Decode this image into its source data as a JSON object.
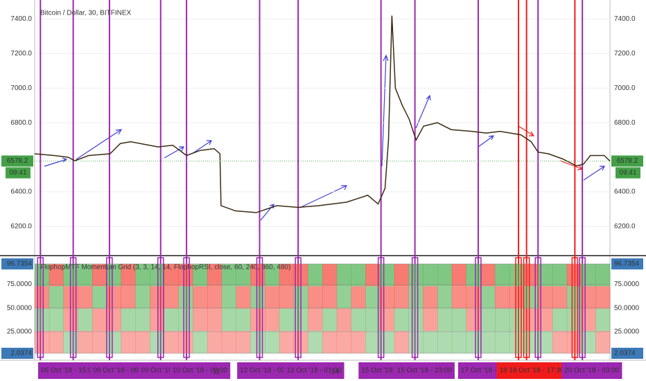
{
  "chart_data": [
    {
      "type": "line",
      "title": "Bitcoin / Dollar, 30, BITFINEX",
      "x": [
        0,
        3.4,
        5.8,
        7,
        9.4,
        13.1,
        14.9,
        16.7,
        21.5,
        24,
        26.4,
        28.8,
        31.2,
        32.2,
        32.4,
        34.9,
        38.5,
        42.1,
        45.8,
        49.4,
        54.2,
        57.9,
        59.7,
        60.9,
        61.5,
        62.1,
        62.7,
        63.9,
        65.1,
        66.3,
        67.6,
        70,
        72.4,
        76,
        78.5,
        80.9,
        84.5,
        86.3,
        87.5,
        89.3,
        91.8,
        94.2,
        95.4,
        96.6,
        99,
        100
      ],
      "values": [
        6620,
        6610,
        6600,
        6580,
        6610,
        6620,
        6680,
        6690,
        6660,
        6670,
        6610,
        6640,
        6650,
        6620,
        6320,
        6290,
        6280,
        6320,
        6310,
        6320,
        6340,
        6380,
        6330,
        6420,
        6700,
        7420,
        7000,
        6900,
        6820,
        6700,
        6780,
        6800,
        6760,
        6750,
        6740,
        6750,
        6730,
        6690,
        6630,
        6620,
        6590,
        6550,
        6560,
        6610,
        6610,
        6578.2
      ],
      "color": "#3b2a12",
      "xlim": [
        0,
        100
      ],
      "ylim": [
        6035,
        7510
      ],
      "yticks": [
        {
          "value": 7400,
          "label": "7400.0"
        },
        {
          "value": 7200,
          "label": "7200.0"
        },
        {
          "value": 7000,
          "label": "7000.0"
        },
        {
          "value": 6800,
          "label": "6800.0"
        },
        {
          "value": 6400,
          "label": "6400.0"
        },
        {
          "value": 6200,
          "label": "6200.0"
        }
      ],
      "last_price": {
        "value": 6578.2,
        "label": "6578.2"
      },
      "countdown": "09:41",
      "signals": [
        {
          "x": 1,
          "color": "#9c27b0"
        },
        {
          "x": 6.7,
          "color": "#9c27b0"
        },
        {
          "x": 13,
          "color": "#9c27b0"
        },
        {
          "x": 21.9,
          "color": "#9c27b0"
        },
        {
          "x": 26.4,
          "color": "#9c27b0"
        },
        {
          "x": 39.1,
          "color": "#9c27b0"
        },
        {
          "x": 45.8,
          "color": "#9c27b0"
        },
        {
          "x": 60.2,
          "color": "#9c27b0"
        },
        {
          "x": 66.1,
          "color": "#9c27b0"
        },
        {
          "x": 77.1,
          "color": "#9c27b0"
        },
        {
          "x": 84.1,
          "color": "#f21b1b"
        },
        {
          "x": 85.5,
          "color": "#f21b1b"
        },
        {
          "x": 87.5,
          "color": "#9c27b0"
        },
        {
          "x": 93.9,
          "color": "#f21b1b"
        },
        {
          "x": 95.2,
          "color": "#9c27b0"
        }
      ],
      "xticks": [
        {
          "value": 0.6,
          "label": "06 Oct '18 - 15:00",
          "color": "#9c27b0"
        },
        {
          "value": 9.7,
          "label": "08 Oct '18 - 08:30",
          "color": "#9c27b0"
        },
        {
          "value": 18,
          "label": "09 Oct '18 -",
          "color": "#9c27b0"
        },
        {
          "value": 23.5,
          "label": "10 Oct '18 - 09:00",
          "color": "#9c27b0"
        },
        {
          "value": 31.6,
          "label": "11"
        },
        {
          "value": 35.2,
          "label": "12 Oct '18 - 02:",
          "color": "#9c27b0"
        },
        {
          "value": 43.3,
          "label": "13 Oct '18 - 01:00",
          "color": "#9c27b0"
        },
        {
          "value": 52.2,
          "label": "14"
        },
        {
          "value": 56.3,
          "label": "15 Oct '18 - 0",
          "color": "#9c27b0"
        },
        {
          "value": 62.5,
          "label": "15 Oct '18 - 23:00",
          "color": "#9c27b0"
        },
        {
          "value": 73.6,
          "label": "17 Oct '18 - 12:",
          "color": "#9c27b0"
        },
        {
          "value": 80.3,
          "label": "18 18 Oct '18 - 17:30 : 19",
          "color": "#f21b1b"
        },
        {
          "value": 91.6,
          "label": "20 Oct '18 - 03:00",
          "color": "#9c27b0"
        }
      ]
    },
    {
      "type": "grid",
      "title": "FlophopMTF Momentum Grid (3, 3, 14, 14, FlophopRSI, close, 60, 240, 360, 480)",
      "ylim": [
        -5.3,
        103.3
      ],
      "yticks": [
        {
          "value": 96.7354,
          "label": "96.7354"
        },
        {
          "value": 75,
          "label": "75.0000"
        },
        {
          "value": 50,
          "label": "50.0000"
        },
        {
          "value": 25,
          "label": "25.0000"
        },
        {
          "value": 2.0374,
          "label": "2.0374"
        }
      ],
      "up_color": "#4caf50",
      "down_color": "#f44336",
      "rows": [
        [
          -1,
          -1,
          1,
          -1,
          -1,
          1,
          -1,
          -1,
          1,
          -1,
          -1,
          1,
          -1,
          -1,
          -1,
          1,
          1,
          -1,
          -1,
          1,
          -1,
          -1,
          -1,
          1,
          1,
          -1,
          1,
          1,
          1,
          1,
          1,
          1,
          1,
          1,
          1,
          1,
          -1,
          -1,
          1,
          -1
        ],
        [
          1,
          1,
          -1,
          1,
          -1,
          -1,
          1,
          1,
          -1,
          1,
          1,
          -1,
          -1,
          1,
          1,
          -1,
          -1,
          1,
          1,
          -1,
          1,
          -1,
          1,
          1,
          -1,
          1,
          1,
          -1,
          1,
          1,
          -1,
          1,
          1,
          1,
          -1,
          -1,
          1,
          1,
          -1,
          1
        ],
        [
          -1,
          1,
          -1,
          -1,
          1,
          -1,
          -1,
          1,
          -1,
          -1,
          1,
          -1,
          -1,
          1,
          -1,
          1,
          -1,
          -1,
          1,
          -1,
          -1,
          1,
          -1,
          1,
          -1,
          -1,
          1,
          -1,
          1,
          -1,
          -1,
          1,
          -1,
          -1,
          1,
          -1,
          -1,
          1,
          -1,
          -1
        ],
        [
          1,
          -1,
          1,
          1,
          -1,
          1,
          -1,
          1,
          1,
          -1,
          -1,
          1,
          -1,
          1,
          1,
          -1,
          1,
          -1,
          -1,
          1,
          -1,
          1,
          1,
          -1,
          1,
          -1,
          1,
          1,
          1,
          -1,
          1,
          -1,
          1,
          1,
          -1,
          1,
          1,
          -1,
          1,
          1
        ]
      ]
    }
  ]
}
